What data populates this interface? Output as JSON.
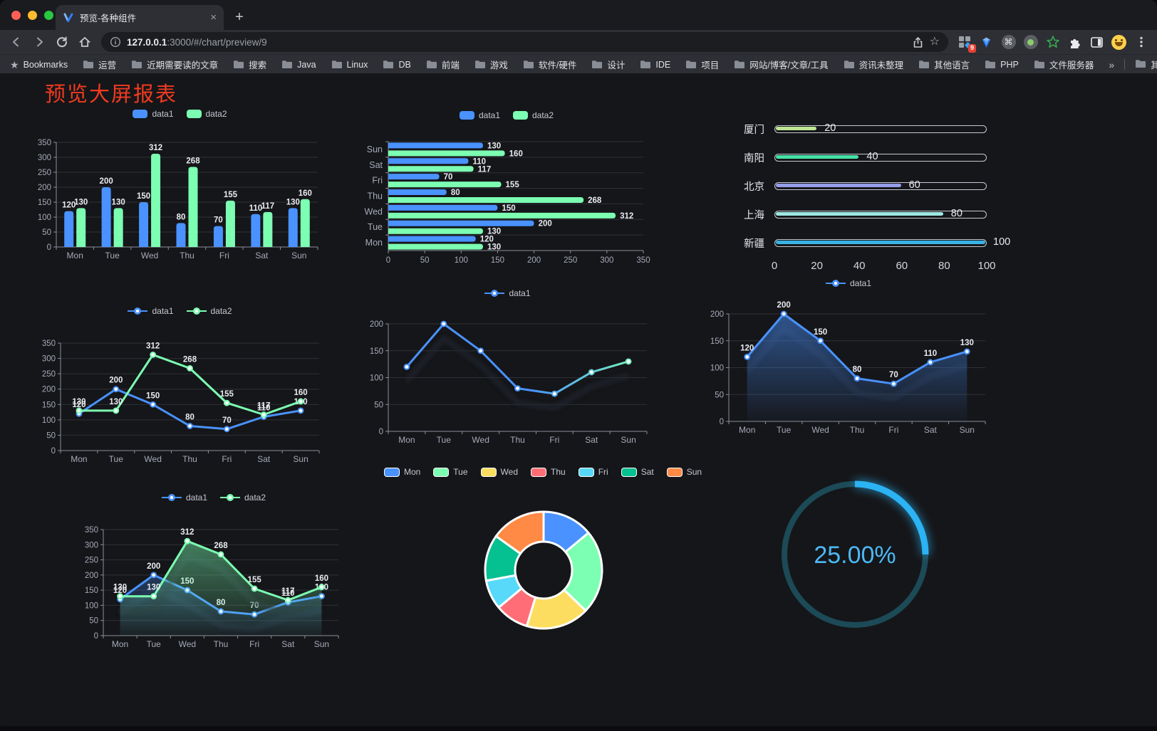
{
  "browser": {
    "traffic_lights": {
      "close": "#ff5f57",
      "minimize": "#febc2e",
      "zoom": "#28c840"
    },
    "tab": {
      "title": "预览-各种组件",
      "close_glyph": "×",
      "new_tab_glyph": "+"
    },
    "url": {
      "host": "127.0.0.1",
      "rest": ":3000/#/chart/preview/9"
    },
    "extension_badge": "9",
    "bookmarks": {
      "label": "Bookmarks",
      "items": [
        "运营",
        "近期需要读的文章",
        "搜索",
        "Java",
        "Linux",
        "DB",
        "前端",
        "游戏",
        "软件/硬件",
        "设计",
        "IDE",
        "项目",
        "网站/博客/文章/工具",
        "资讯未整理",
        "其他语言",
        "PHP",
        "文件服务器"
      ],
      "overflow_glyph": "»",
      "other_bookmarks": "其他书签"
    }
  },
  "page": {
    "title": "预览大屏报表",
    "title_color": "#f03b20",
    "background": "#151619"
  },
  "chart_data": [
    {
      "id": "grouped-bar",
      "type": "bar",
      "categories": [
        "Mon",
        "Tue",
        "Wed",
        "Thu",
        "Fri",
        "Sat",
        "Sun"
      ],
      "series": [
        {
          "name": "data1",
          "color": "#4992ff",
          "values": [
            120,
            200,
            150,
            80,
            70,
            110,
            130
          ]
        },
        {
          "name": "data2",
          "color": "#7cffb2",
          "values": [
            130,
            130,
            312,
            268,
            155,
            117,
            160
          ]
        }
      ],
      "ylim": [
        0,
        350
      ],
      "yticks": [
        0,
        50,
        100,
        150,
        200,
        250,
        300,
        350
      ],
      "labels": true,
      "legend_position": "top",
      "grid": true
    },
    {
      "id": "horizontal-bar",
      "type": "bar-horizontal",
      "categories": [
        "Mon",
        "Tue",
        "Wed",
        "Thu",
        "Fri",
        "Sat",
        "Sun"
      ],
      "display_order_top_to_bottom": [
        "Sun",
        "Sat",
        "Fri",
        "Thu",
        "Wed",
        "Tue",
        "Mon"
      ],
      "series": [
        {
          "name": "data1",
          "color": "#4992ff",
          "values": [
            120,
            200,
            150,
            80,
            70,
            110,
            130
          ]
        },
        {
          "name": "data2",
          "color": "#7cffb2",
          "values": [
            130,
            130,
            312,
            268,
            155,
            117,
            160
          ]
        }
      ],
      "xlim": [
        0,
        350
      ],
      "xticks": [
        0,
        50,
        100,
        150,
        200,
        250,
        300,
        350
      ],
      "labels": true,
      "legend_position": "top",
      "grid": true
    },
    {
      "id": "city-progress",
      "type": "progress",
      "items": [
        {
          "label": "厦门",
          "value": 20,
          "color": "#bfe793"
        },
        {
          "label": "南阳",
          "value": 40,
          "color": "#45e1a5"
        },
        {
          "label": "北京",
          "value": 60,
          "color": "#959ee9"
        },
        {
          "label": "上海",
          "value": 80,
          "color": "#9de7e3"
        },
        {
          "label": "新疆",
          "value": 100,
          "color": "#38b2e5"
        }
      ],
      "xlim": [
        0,
        100
      ],
      "xticks": [
        0,
        20,
        40,
        60,
        80,
        100
      ]
    },
    {
      "id": "two-line",
      "type": "line",
      "categories": [
        "Mon",
        "Tue",
        "Wed",
        "Thu",
        "Fri",
        "Sat",
        "Sun"
      ],
      "series": [
        {
          "name": "data1",
          "color": "#4992ff",
          "values": [
            120,
            200,
            150,
            80,
            70,
            110,
            130
          ]
        },
        {
          "name": "data2",
          "color": "#7cffb2",
          "values": [
            130,
            130,
            312,
            268,
            155,
            117,
            160
          ]
        }
      ],
      "ylim": [
        0,
        350
      ],
      "yticks": [
        0,
        50,
        100,
        150,
        200,
        250,
        300,
        350
      ],
      "labels": true,
      "legend_position": "top",
      "grid": true
    },
    {
      "id": "gradient-line",
      "type": "line",
      "categories": [
        "Mon",
        "Tue",
        "Wed",
        "Thu",
        "Fri",
        "Sat",
        "Sun"
      ],
      "series": [
        {
          "name": "data1",
          "gradient": [
            "#4992ff",
            "#7cffb2"
          ],
          "values": [
            120,
            200,
            150,
            80,
            70,
            110,
            130
          ]
        }
      ],
      "ylim": [
        0,
        200
      ],
      "yticks": [
        0,
        50,
        100,
        150,
        200
      ],
      "labels": false,
      "shadow": true,
      "legend_position": "top",
      "grid": true
    },
    {
      "id": "blue-area-line",
      "type": "line",
      "categories": [
        "Mon",
        "Tue",
        "Wed",
        "Thu",
        "Fri",
        "Sat",
        "Sun"
      ],
      "series": [
        {
          "name": "data1",
          "color": "#4992ff",
          "area": true,
          "values": [
            120,
            200,
            150,
            80,
            70,
            110,
            130
          ]
        }
      ],
      "ylim": [
        0,
        200
      ],
      "yticks": [
        0,
        50,
        100,
        150,
        200
      ],
      "labels": true,
      "shadow": true,
      "legend_position": "top",
      "grid": true
    },
    {
      "id": "two-area-line",
      "type": "line",
      "categories": [
        "Mon",
        "Tue",
        "Wed",
        "Thu",
        "Fri",
        "Sat",
        "Sun"
      ],
      "series": [
        {
          "name": "data1",
          "color": "#4992ff",
          "area": true,
          "values": [
            120,
            200,
            150,
            80,
            70,
            110,
            130
          ]
        },
        {
          "name": "data2",
          "color": "#7cffb2",
          "area": true,
          "values": [
            130,
            130,
            312,
            268,
            155,
            117,
            160
          ]
        }
      ],
      "ylim": [
        0,
        350
      ],
      "yticks": [
        0,
        50,
        100,
        150,
        200,
        250,
        300,
        350
      ],
      "labels": true,
      "shadow": true,
      "legend_position": "top",
      "grid": true
    },
    {
      "id": "week-donut",
      "type": "pie",
      "items": [
        {
          "name": "Mon",
          "value": 120,
          "color": "#4992ff"
        },
        {
          "name": "Tue",
          "value": 200,
          "color": "#7cffb2"
        },
        {
          "name": "Wed",
          "value": 150,
          "color": "#fddd60"
        },
        {
          "name": "Thu",
          "value": 80,
          "color": "#ff6e76"
        },
        {
          "name": "Fri",
          "value": 70,
          "color": "#58d9f9"
        },
        {
          "name": "Sat",
          "value": 110,
          "color": "#05c091"
        },
        {
          "name": "Sun",
          "value": 130,
          "color": "#ff8a45"
        }
      ],
      "legend_position": "top"
    },
    {
      "id": "percent-gauge",
      "type": "gauge",
      "value": 25,
      "text": "25.00%",
      "color": "#2bb3f3",
      "track_color": "#1c4a57",
      "text_color": "#4cb9f6"
    }
  ]
}
